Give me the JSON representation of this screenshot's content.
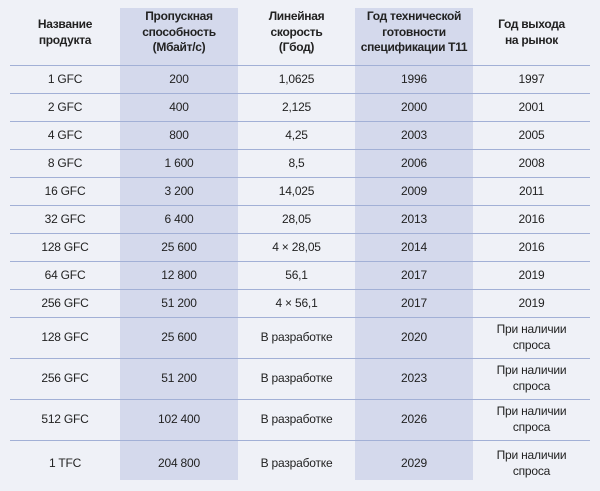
{
  "chart_data": {
    "type": "table",
    "title": "",
    "columns": [
      "Название\nпродукта",
      "Пропускная\nспособность\n(Мбайт/с)",
      "Линейная скорость\n(Гбод)",
      "Год технической\nготовности\nспецификации T11",
      "Год выхода\nна рынок"
    ],
    "rows": [
      [
        "1 GFC",
        "200",
        "1,0625",
        "1996",
        "1997"
      ],
      [
        "2 GFC",
        "400",
        "2,125",
        "2000",
        "2001"
      ],
      [
        "4 GFC",
        "800",
        "4,25",
        "2003",
        "2005"
      ],
      [
        "8 GFC",
        "1 600",
        "8,5",
        "2006",
        "2008"
      ],
      [
        "16 GFC",
        "3 200",
        "14,025",
        "2009",
        "2011"
      ],
      [
        "32 GFC",
        "6 400",
        "28,05",
        "2013",
        "2016"
      ],
      [
        "128 GFC",
        "25 600",
        "4 × 28,05",
        "2014",
        "2016"
      ],
      [
        "64 GFC",
        "12 800",
        "56,1",
        "2017",
        "2019"
      ],
      [
        "256 GFC",
        "51 200",
        "4 × 56,1",
        "2017",
        "2019"
      ],
      [
        "128 GFC",
        "25 600",
        "В разработке",
        "2020",
        "При наличии\nспроса"
      ],
      [
        "256 GFC",
        "51 200",
        "В разработке",
        "2023",
        "При наличии\nспроса"
      ],
      [
        "512 GFC",
        "102 400",
        "В разработке",
        "2026",
        "При наличии\nспроса"
      ],
      [
        "1 TFC",
        "204 800",
        "В разработке",
        "2029",
        "При наличии\nспроса"
      ]
    ],
    "layout": {
      "shaded_column_indexes": [
        1,
        3
      ],
      "grid": "horizontal-rules-only",
      "legend": "none"
    }
  },
  "colors": {
    "page_background": "#eff1f7",
    "shaded_column": "#d4d9ec",
    "row_separator": "#a2b0d6",
    "text": "#222222"
  }
}
